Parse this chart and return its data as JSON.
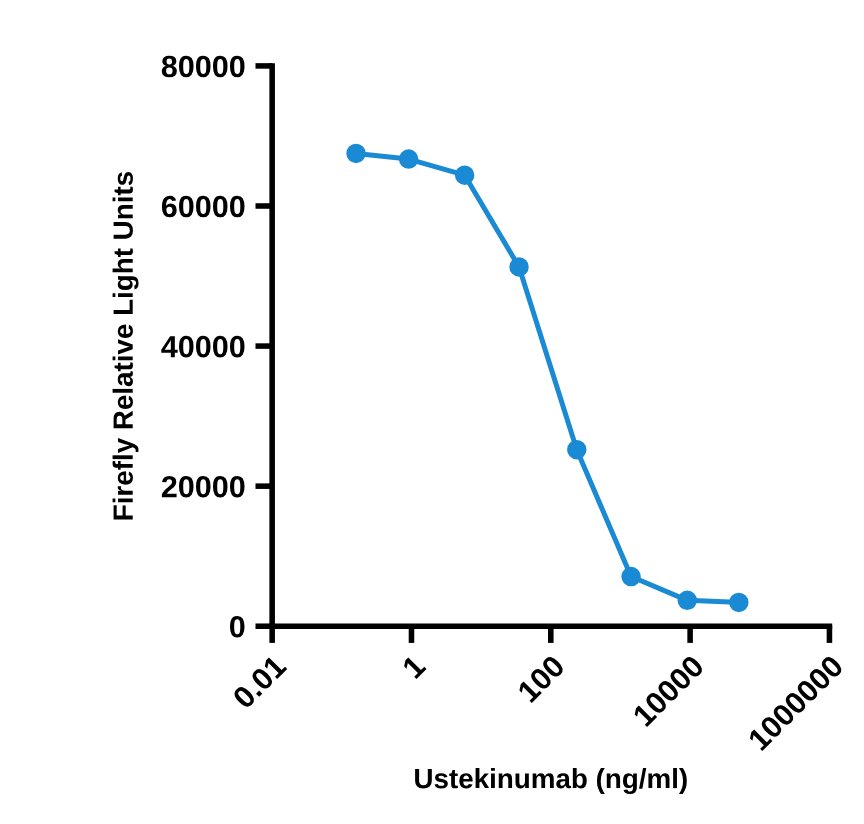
{
  "chart_data": {
    "type": "line",
    "xlabel": "Ustekinumab (ng/ml)",
    "ylabel": "Firefly Relative Light Units",
    "x": [
      0.16,
      0.91,
      5.8,
      35,
      236,
      1420,
      9100,
      50000
    ],
    "series": [
      {
        "color": "#1a8ad4",
        "values": [
          67500,
          66700,
          64400,
          51300,
          25200,
          7100,
          3700,
          3400
        ]
      }
    ],
    "log": "x",
    "marker": "circle",
    "line_style": "solid",
    "grid": false,
    "xlim": [
      0.01,
      1000000
    ],
    "xticks": [
      {
        "value": 0.01,
        "label": "0.01"
      },
      {
        "value": 1,
        "label": "1"
      },
      {
        "value": 100,
        "label": "100"
      },
      {
        "value": 10000,
        "label": "10000"
      },
      {
        "value": 1000000,
        "label": "1000000"
      }
    ],
    "ylim": [
      0,
      80000
    ],
    "yticks": [
      0,
      20000,
      40000,
      60000,
      80000
    ]
  }
}
